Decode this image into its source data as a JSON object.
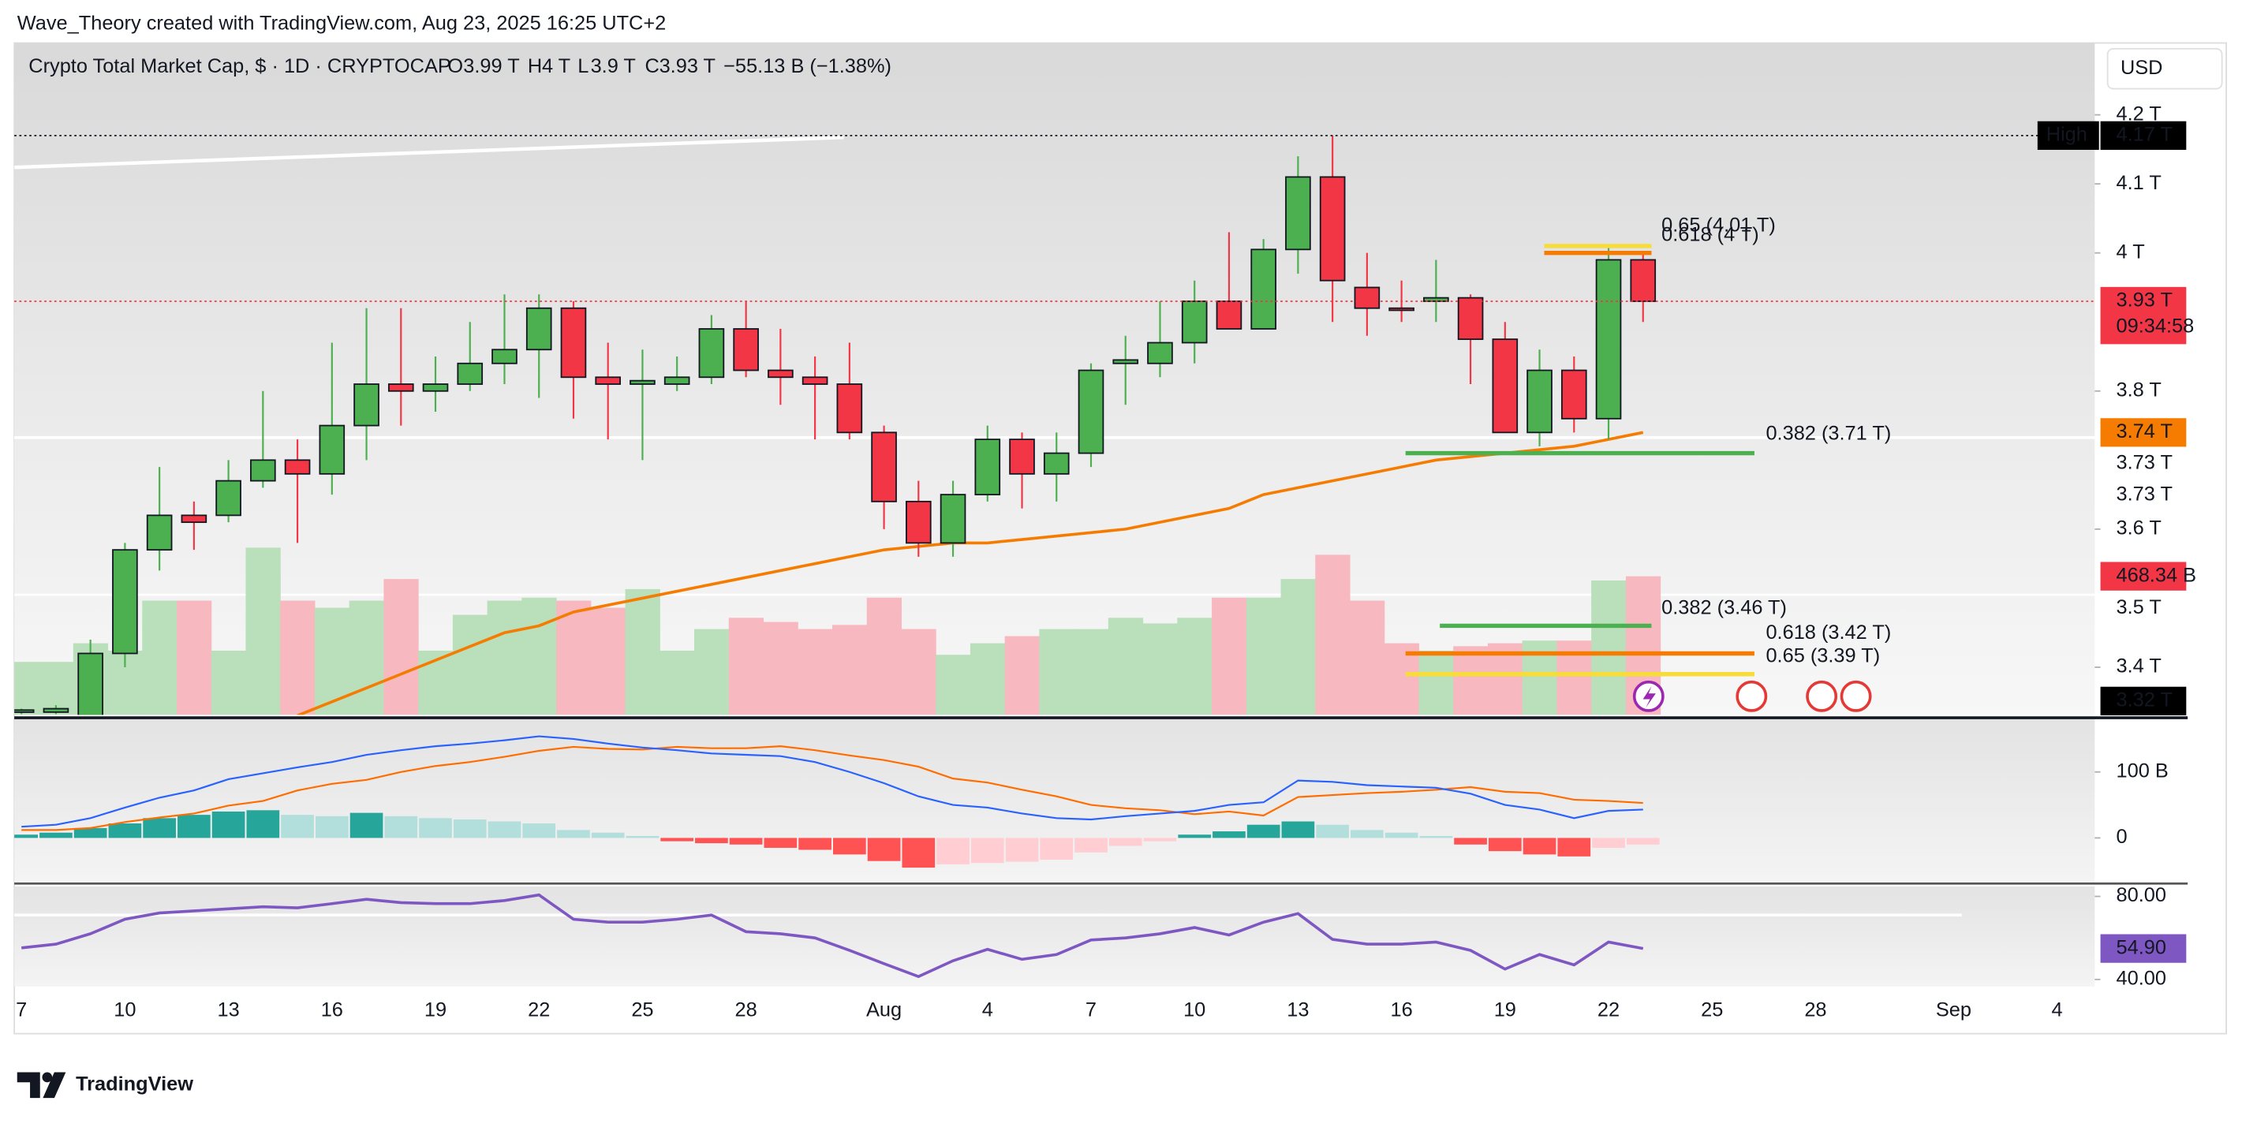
{
  "header": {
    "attribution": "Wave_Theory created with TradingView.com, Aug 23, 2025 16:25 UTC+2",
    "symbol": "Crypto Total Market Cap, $ · 1D · CRYPTOCAP",
    "ohlc": [
      {
        "key": "O",
        "value": "3.99 T"
      },
      {
        "key": "H",
        "value": "4 T"
      },
      {
        "key": "L",
        "value": "3.9 T"
      },
      {
        "key": "C",
        "value": "3.93 T"
      }
    ],
    "change": "−55.13 B (−1.38%)",
    "currency": "USD"
  },
  "footer": {
    "brand": "TradingView"
  },
  "chart_data": [
    {
      "type": "candlestick",
      "categories": [
        "7",
        null,
        null,
        "10",
        null,
        null,
        "13",
        null,
        null,
        "16",
        null,
        null,
        "19",
        null,
        null,
        "22",
        null,
        null,
        "25",
        null,
        null,
        "28",
        null,
        null,
        null,
        "Aug",
        null,
        null,
        "4",
        null,
        null,
        "7",
        null,
        null,
        "10",
        null,
        null,
        "13",
        null,
        null,
        "16",
        null,
        null,
        "19",
        null,
        null,
        "22",
        null,
        null,
        "25",
        null,
        null,
        "28",
        null,
        null,
        null,
        "Sep",
        null,
        null,
        "4"
      ],
      "open": [
        3.335,
        3.335,
        3.33,
        3.42,
        3.57,
        3.62,
        3.62,
        3.67,
        3.7,
        3.68,
        3.75,
        3.81,
        3.8,
        3.81,
        3.84,
        3.86,
        3.92,
        3.82,
        3.81,
        3.81,
        3.82,
        3.89,
        3.83,
        3.82,
        3.81,
        3.74,
        3.64,
        3.58,
        3.65,
        3.73,
        3.68,
        3.71,
        3.84,
        3.84,
        3.87,
        3.93,
        3.89,
        4.005,
        4.11,
        3.95,
        3.92,
        3.93,
        3.935,
        3.875,
        3.74,
        3.83,
        3.76,
        3.99,
        null,
        null,
        null,
        null,
        null,
        null,
        null,
        null,
        null,
        null,
        null,
        null
      ],
      "high": [
        3.34,
        3.345,
        3.44,
        3.58,
        3.69,
        3.64,
        3.7,
        3.8,
        3.73,
        3.87,
        3.92,
        3.92,
        3.85,
        3.9,
        3.94,
        3.94,
        3.93,
        3.87,
        3.86,
        3.85,
        3.91,
        3.93,
        3.89,
        3.85,
        3.87,
        3.75,
        3.67,
        3.67,
        3.75,
        3.74,
        3.74,
        3.84,
        3.88,
        3.93,
        3.96,
        4.03,
        4.02,
        4.14,
        4.17,
        4.0,
        3.96,
        3.99,
        3.94,
        3.9,
        3.86,
        3.85,
        4.01,
        4.0,
        null,
        null,
        null,
        null,
        null,
        null,
        null,
        null,
        null,
        null,
        null,
        null
      ],
      "low": [
        3.332,
        3.332,
        3.332,
        3.4,
        3.54,
        3.57,
        3.61,
        3.66,
        3.58,
        3.65,
        3.7,
        3.75,
        3.77,
        3.8,
        3.81,
        3.79,
        3.76,
        3.73,
        3.7,
        3.8,
        3.81,
        3.82,
        3.78,
        3.73,
        3.73,
        3.6,
        3.56,
        3.56,
        3.64,
        3.63,
        3.64,
        3.69,
        3.78,
        3.82,
        3.84,
        3.89,
        3.89,
        3.97,
        3.9,
        3.88,
        3.9,
        3.9,
        3.81,
        3.74,
        3.72,
        3.74,
        3.73,
        3.9,
        null,
        null,
        null,
        null,
        null,
        null,
        null,
        null,
        null,
        null,
        null,
        null
      ],
      "close": [
        3.338,
        3.34,
        3.42,
        3.57,
        3.62,
        3.61,
        3.67,
        3.7,
        3.68,
        3.75,
        3.81,
        3.8,
        3.81,
        3.84,
        3.86,
        3.92,
        3.82,
        3.81,
        3.815,
        3.82,
        3.89,
        3.83,
        3.82,
        3.81,
        3.74,
        3.64,
        3.58,
        3.65,
        3.73,
        3.68,
        3.71,
        3.83,
        3.845,
        3.87,
        3.93,
        3.89,
        4.005,
        4.11,
        3.96,
        3.92,
        3.918,
        3.935,
        3.875,
        3.74,
        3.83,
        3.76,
        3.99,
        3.93,
        null,
        null,
        null,
        null,
        null,
        null,
        null,
        null,
        null,
        null,
        null,
        null
      ],
      "up_color": "#4caf50",
      "down_color": "#f23645",
      "ylim": [
        3.331,
        4.304
      ],
      "yticks": [
        {
          "value": 4.2,
          "label": "4.2 T"
        },
        {
          "value": 4.1,
          "label": "4.1 T"
        },
        {
          "value": 4,
          "label": "4 T"
        },
        {
          "value": 3.8,
          "label": "3.8 T"
        },
        {
          "value": 3.6,
          "label": "3.6 T"
        },
        {
          "value": 3.4,
          "label": "3.4 T"
        }
      ],
      "grid": false,
      "volume": {
        "ylim": [
          0,
          2270
        ],
        "up_color": "#b9dfbb",
        "down_color": "#f8b8bf",
        "values": [
          179,
          179,
          242,
          217,
          386,
          386,
          217,
          565,
          386,
          362,
          386,
          459,
          217,
          338,
          386,
          396,
          386,
          362,
          425,
          217,
          290,
          328,
          314,
          290,
          304,
          396,
          290,
          203,
          242,
          266,
          290,
          290,
          328,
          309,
          328,
          396,
          396,
          459,
          541,
          386,
          242,
          217,
          232,
          242,
          251,
          251,
          454,
          468.34,
          null,
          null,
          null,
          null,
          null,
          null,
          null,
          null,
          null,
          null,
          null,
          null
        ],
        "value_labels": [
          null,
          null,
          null,
          null,
          null,
          null,
          null,
          null,
          null,
          null,
          null,
          null,
          null,
          null,
          null,
          null,
          null,
          null,
          null,
          null,
          null,
          null,
          null,
          null,
          null,
          null,
          null,
          null,
          null,
          null,
          null,
          null,
          null,
          null,
          null,
          null,
          null,
          null,
          null,
          null,
          null,
          null,
          null,
          null,
          null,
          null,
          null,
          "468.34 B",
          null,
          null,
          null,
          null,
          null,
          null,
          null,
          null,
          null,
          null,
          null,
          null
        ],
        "label_color": "#f23645"
      },
      "moving_average": {
        "color": "#f57c00",
        "values": [
          null,
          null,
          null,
          null,
          null,
          null,
          null,
          null,
          3.33,
          3.35,
          3.37,
          3.39,
          3.41,
          3.43,
          3.45,
          3.46,
          3.48,
          3.49,
          3.5,
          3.51,
          3.52,
          3.53,
          3.54,
          3.55,
          3.56,
          3.57,
          3.575,
          3.58,
          3.58,
          3.585,
          3.59,
          3.595,
          3.6,
          3.61,
          3.62,
          3.63,
          3.65,
          3.66,
          3.67,
          3.68,
          3.69,
          3.7,
          3.705,
          3.71,
          3.715,
          3.72,
          3.73,
          3.74,
          null,
          null,
          null,
          null,
          null,
          null,
          null,
          null,
          null,
          null,
          null,
          null
        ]
      },
      "fib_levels": [
        {
          "label": "0.65 (4.01 T)",
          "value": 4.01,
          "color": "#f7dc3a"
        },
        {
          "label": "0.618 (4 T)",
          "value": 4,
          "color": "#f57c00"
        },
        {
          "label": "0.382 (3.71 T)",
          "value": 3.71,
          "color": "#4caf50"
        },
        {
          "label": "0.382 (3.46 T)",
          "value": 3.46,
          "color": "#4caf50"
        },
        {
          "label": "0.618 (3.42 T)",
          "value": 3.42,
          "color": "#f57c00"
        },
        {
          "label": "0.65 (3.39 T)",
          "value": 3.39,
          "color": "#f7dc3a"
        }
      ],
      "price_labels": [
        {
          "value": 4.17,
          "label": "4.17 T",
          "tag": "High",
          "color": "#000000"
        },
        {
          "value": 3.93,
          "label": "3.93 T",
          "sub": "09:34:58",
          "color": "#f23645"
        },
        {
          "value": 3.74,
          "label": "3.74 T",
          "color": "#f57c00"
        },
        {
          "value": 3.73,
          "label": "3.73 T",
          "color": "#ffffff"
        },
        {
          "value": 3.73,
          "label": "3.73 T",
          "color": "#ffffff"
        },
        {
          "value": 3.5,
          "label": "3.5 T",
          "color": "#ffffff"
        },
        {
          "value": 3.32,
          "label": "3.32 T",
          "color": "#000000"
        }
      ]
    },
    {
      "type": "macd",
      "ylim": [
        -67,
        180
      ],
      "yticks": [
        {
          "value": 100,
          "label": "100 B"
        },
        0
      ],
      "histogram": [
        5,
        8,
        15,
        22,
        30,
        35,
        40,
        42,
        35,
        33,
        38,
        33,
        30,
        28,
        25,
        22,
        12,
        8,
        3,
        -5,
        -8,
        -10,
        -15,
        -18,
        -25,
        -35,
        -45,
        -40,
        -38,
        -36,
        -33,
        -22,
        -12,
        -5,
        5,
        10,
        20,
        25,
        20,
        12,
        8,
        3,
        -10,
        -20,
        -25,
        -28,
        -15,
        -10
      ],
      "histogram_colors": [
        "#26a69a",
        "#b2dfdb",
        "#ff5252",
        "#ffcdd2"
      ],
      "macd": {
        "color": "#2962ff",
        "values": [
          17,
          20,
          30,
          46,
          61,
          72,
          89,
          98,
          107,
          115,
          126,
          133,
          139,
          143,
          148,
          154,
          150,
          143,
          137,
          133,
          128,
          126,
          124,
          115,
          100,
          83,
          63,
          50,
          46,
          37,
          30,
          28,
          33,
          37,
          41,
          50,
          54,
          87,
          85,
          80,
          78,
          76,
          67,
          50,
          43,
          30,
          41,
          43
        ]
      },
      "signal": {
        "color": "#ff6d00",
        "values": [
          12,
          12,
          15,
          24,
          31,
          37,
          49,
          56,
          72,
          82,
          88,
          100,
          109,
          115,
          123,
          132,
          138,
          135,
          134,
          138,
          136,
          136,
          139,
          133,
          125,
          118,
          108,
          90,
          84,
          73,
          63,
          50,
          45,
          42,
          36,
          40,
          34,
          62,
          65,
          68,
          70,
          73,
          77,
          70,
          68,
          58,
          56,
          53
        ]
      }
    },
    {
      "type": "line",
      "ylim": [
        36.6,
        84.8
      ],
      "yticks": [
        {
          "value": 80,
          "label": "80.00"
        },
        {
          "value": 40,
          "label": "40.00"
        }
      ],
      "color": "#7e57c2",
      "values": [
        55.2,
        57,
        62,
        69,
        72,
        73,
        74,
        75,
        74.5,
        76.5,
        78.6,
        77,
        76.5,
        76.5,
        78,
        80.7,
        69,
        67.6,
        67.6,
        69,
        71,
        63,
        62,
        60,
        54,
        47.6,
        41.4,
        49,
        54.5,
        49.7,
        52,
        59,
        60,
        62,
        65,
        61.4,
        67.6,
        71.7,
        59.3,
        57,
        57,
        58,
        54,
        45,
        52,
        47,
        58,
        54.9
      ],
      "value_labels": [
        null,
        null,
        null,
        null,
        null,
        null,
        null,
        null,
        null,
        null,
        null,
        null,
        null,
        null,
        null,
        null,
        null,
        null,
        null,
        null,
        null,
        null,
        null,
        null,
        null,
        null,
        null,
        null,
        null,
        null,
        null,
        null,
        null,
        null,
        null,
        null,
        null,
        null,
        null,
        null,
        null,
        null,
        null,
        null,
        null,
        null,
        null,
        "54.90"
      ]
    }
  ]
}
